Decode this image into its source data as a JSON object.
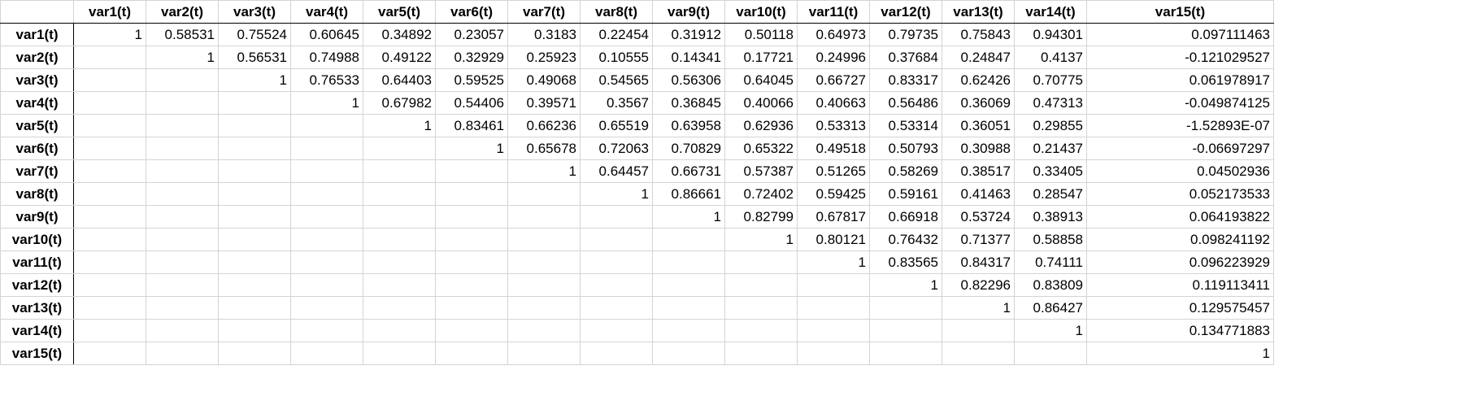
{
  "corner": "",
  "columns": [
    "var1(t)",
    "var2(t)",
    "var3(t)",
    "var4(t)",
    "var5(t)",
    "var6(t)",
    "var7(t)",
    "var8(t)",
    "var9(t)",
    "var10(t)",
    "var11(t)",
    "var12(t)",
    "var13(t)",
    "var14(t)",
    "var15(t)"
  ],
  "rows": [
    {
      "label": "var1(t)",
      "cells": [
        "1",
        "0.58531",
        "0.75524",
        "0.60645",
        "0.34892",
        "0.23057",
        "0.3183",
        "0.22454",
        "0.31912",
        "0.50118",
        "0.64973",
        "0.79735",
        "0.75843",
        "0.94301",
        "0.097111463"
      ]
    },
    {
      "label": "var2(t)",
      "cells": [
        "",
        "1",
        "0.56531",
        "0.74988",
        "0.49122",
        "0.32929",
        "0.25923",
        "0.10555",
        "0.14341",
        "0.17721",
        "0.24996",
        "0.37684",
        "0.24847",
        "0.4137",
        "-0.121029527"
      ]
    },
    {
      "label": "var3(t)",
      "cells": [
        "",
        "",
        "1",
        "0.76533",
        "0.64403",
        "0.59525",
        "0.49068",
        "0.54565",
        "0.56306",
        "0.64045",
        "0.66727",
        "0.83317",
        "0.62426",
        "0.70775",
        "0.061978917"
      ]
    },
    {
      "label": "var4(t)",
      "cells": [
        "",
        "",
        "",
        "1",
        "0.67982",
        "0.54406",
        "0.39571",
        "0.3567",
        "0.36845",
        "0.40066",
        "0.40663",
        "0.56486",
        "0.36069",
        "0.47313",
        "-0.049874125"
      ]
    },
    {
      "label": "var5(t)",
      "cells": [
        "",
        "",
        "",
        "",
        "1",
        "0.83461",
        "0.66236",
        "0.65519",
        "0.63958",
        "0.62936",
        "0.53313",
        "0.53314",
        "0.36051",
        "0.29855",
        "-1.52893E-07"
      ]
    },
    {
      "label": "var6(t)",
      "cells": [
        "",
        "",
        "",
        "",
        "",
        "1",
        "0.65678",
        "0.72063",
        "0.70829",
        "0.65322",
        "0.49518",
        "0.50793",
        "0.30988",
        "0.21437",
        "-0.06697297"
      ]
    },
    {
      "label": "var7(t)",
      "cells": [
        "",
        "",
        "",
        "",
        "",
        "",
        "1",
        "0.64457",
        "0.66731",
        "0.57387",
        "0.51265",
        "0.58269",
        "0.38517",
        "0.33405",
        "0.04502936"
      ]
    },
    {
      "label": "var8(t)",
      "cells": [
        "",
        "",
        "",
        "",
        "",
        "",
        "",
        "1",
        "0.86661",
        "0.72402",
        "0.59425",
        "0.59161",
        "0.41463",
        "0.28547",
        "0.052173533"
      ]
    },
    {
      "label": "var9(t)",
      "cells": [
        "",
        "",
        "",
        "",
        "",
        "",
        "",
        "",
        "1",
        "0.82799",
        "0.67817",
        "0.66918",
        "0.53724",
        "0.38913",
        "0.064193822"
      ]
    },
    {
      "label": "var10(t)",
      "cells": [
        "",
        "",
        "",
        "",
        "",
        "",
        "",
        "",
        "",
        "1",
        "0.80121",
        "0.76432",
        "0.71377",
        "0.58858",
        "0.098241192"
      ]
    },
    {
      "label": "var11(t)",
      "cells": [
        "",
        "",
        "",
        "",
        "",
        "",
        "",
        "",
        "",
        "",
        "1",
        "0.83565",
        "0.84317",
        "0.74111",
        "0.096223929"
      ]
    },
    {
      "label": "var12(t)",
      "cells": [
        "",
        "",
        "",
        "",
        "",
        "",
        "",
        "",
        "",
        "",
        "",
        "1",
        "0.82296",
        "0.83809",
        "0.119113411"
      ]
    },
    {
      "label": "var13(t)",
      "cells": [
        "",
        "",
        "",
        "",
        "",
        "",
        "",
        "",
        "",
        "",
        "",
        "",
        "1",
        "0.86427",
        "0.129575457"
      ]
    },
    {
      "label": "var14(t)",
      "cells": [
        "",
        "",
        "",
        "",
        "",
        "",
        "",
        "",
        "",
        "",
        "",
        "",
        "",
        "1",
        "0.134771883"
      ]
    },
    {
      "label": "var15(t)",
      "cells": [
        "",
        "",
        "",
        "",
        "",
        "",
        "",
        "",
        "",
        "",
        "",
        "",
        "",
        "",
        "1"
      ]
    }
  ]
}
